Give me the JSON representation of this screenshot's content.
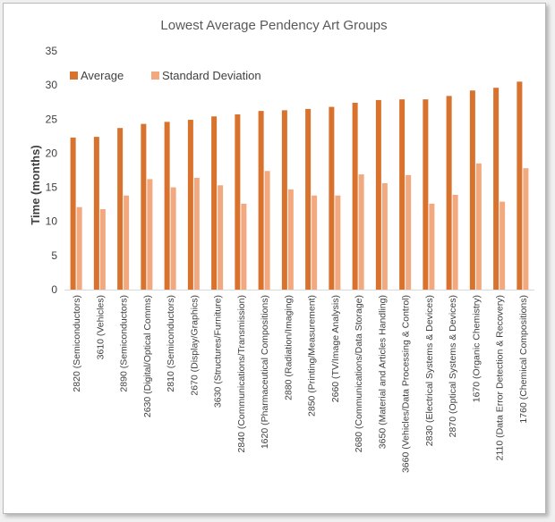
{
  "chart_data": {
    "type": "bar",
    "title": "Lowest Average Pendency Art Groups",
    "xlabel": "",
    "ylabel": "Time (months)",
    "ylim": [
      0,
      35
    ],
    "yticks": [
      0,
      5,
      10,
      15,
      20,
      25,
      30,
      35
    ],
    "grid": false,
    "legend_position": "top-left",
    "categories": [
      "2820 (Semiconductors)",
      "3610 (Vehicles)",
      "2890 (Semiconductors)",
      "2630 (Digital/Optical Comms)",
      "2810 (Semiconductors)",
      "2670 (Display/Graphics)",
      "3630 (Structures/Furniture)",
      "2840 (Communications/Transmission)",
      "1620 (Pharmaceutical Compositions)",
      "2880 (Radiation/Imaging)",
      "2850 (Printing/Measurement)",
      "2660 (TV/Image Analysis)",
      "2680 (Communications/Data Storage)",
      "3650 (Material and Articles Handling)",
      "3660 (Vehicles/Data Processing & Control)",
      "2830 (Electrical Systems & Devices)",
      "2870 (Optical Systems & Devices)",
      "1670 (Organic Chemistry)",
      "2110 (Data Error Detection & Recovery)",
      "1760 (Chemical Compositions)"
    ],
    "series": [
      {
        "name": "Average",
        "color": "#d9722c",
        "values": [
          22.3,
          22.4,
          23.7,
          24.3,
          24.6,
          24.9,
          25.4,
          25.7,
          26.2,
          26.3,
          26.5,
          26.8,
          27.4,
          27.8,
          27.9,
          27.9,
          28.4,
          29.2,
          29.6,
          30.5
        ]
      },
      {
        "name": "Standard Deviation",
        "color": "#f2a980",
        "values": [
          12.1,
          11.8,
          13.8,
          16.2,
          15.0,
          16.4,
          15.3,
          12.6,
          17.4,
          14.7,
          13.8,
          13.8,
          16.9,
          15.6,
          16.8,
          12.6,
          13.9,
          18.5,
          12.9,
          17.8
        ]
      }
    ]
  }
}
